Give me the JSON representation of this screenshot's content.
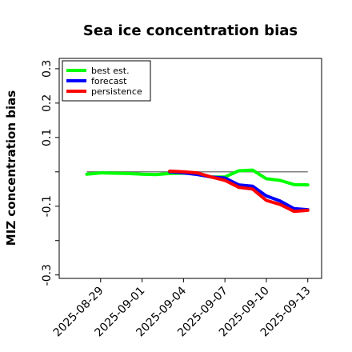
{
  "chart_data": {
    "type": "line",
    "title": "Sea ice concentration bias",
    "xlabel": "",
    "ylabel": "MIZ concentration bias",
    "ylim": [
      -0.31,
      0.33
    ],
    "yticks": [
      -0.3,
      -0.2,
      -0.1,
      0.0,
      0.1,
      0.2,
      0.3
    ],
    "ytick_labels": [
      "-0.3",
      "",
      "-0.1",
      "",
      "0.1",
      "0.2",
      "0.3"
    ],
    "xlim": [
      "2025-08-26",
      "2025-09-14"
    ],
    "xtick_labels": [
      "2025-08-29",
      "2025-09-01",
      "2025-09-04",
      "2025-09-07",
      "2025-09-10",
      "2025-09-13"
    ],
    "highlight_tick": "2025-09-04",
    "highlight_color": "#228b22",
    "zero_line": 0.0,
    "legend": {
      "placement": "top-left"
    },
    "series": [
      {
        "name": "best est.",
        "color": "#00ff00",
        "x": [
          "2025-08-28",
          "2025-08-29",
          "2025-08-30",
          "2025-08-31",
          "2025-09-01",
          "2025-09-02",
          "2025-09-03",
          "2025-09-04",
          "2025-09-05",
          "2025-09-06",
          "2025-09-07",
          "2025-09-08",
          "2025-09-09",
          "2025-09-10",
          "2025-09-11",
          "2025-09-12",
          "2025-09-13"
        ],
        "values": [
          -0.007,
          -0.003,
          -0.004,
          -0.005,
          -0.007,
          -0.008,
          -0.005,
          -0.004,
          -0.005,
          -0.015,
          -0.015,
          0.003,
          0.005,
          -0.02,
          -0.025,
          -0.037,
          -0.038
        ]
      },
      {
        "name": "forecast",
        "color": "#0000ff",
        "x": [
          "2025-09-03",
          "2025-09-04",
          "2025-09-05",
          "2025-09-06",
          "2025-09-07",
          "2025-09-08",
          "2025-09-09",
          "2025-09-10",
          "2025-09-11",
          "2025-09-12",
          "2025-09-13"
        ],
        "values": [
          0.0,
          -0.003,
          -0.008,
          -0.015,
          -0.018,
          -0.038,
          -0.042,
          -0.07,
          -0.085,
          -0.107,
          -0.11
        ]
      },
      {
        "name": "persistence",
        "color": "#ff0000",
        "x": [
          "2025-09-03",
          "2025-09-04",
          "2025-09-05",
          "2025-09-06",
          "2025-09-07",
          "2025-09-08",
          "2025-09-09",
          "2025-09-10",
          "2025-09-11",
          "2025-09-12",
          "2025-09-13"
        ],
        "values": [
          0.002,
          0.0,
          -0.003,
          -0.015,
          -0.025,
          -0.045,
          -0.05,
          -0.083,
          -0.095,
          -0.115,
          -0.112
        ]
      }
    ]
  }
}
